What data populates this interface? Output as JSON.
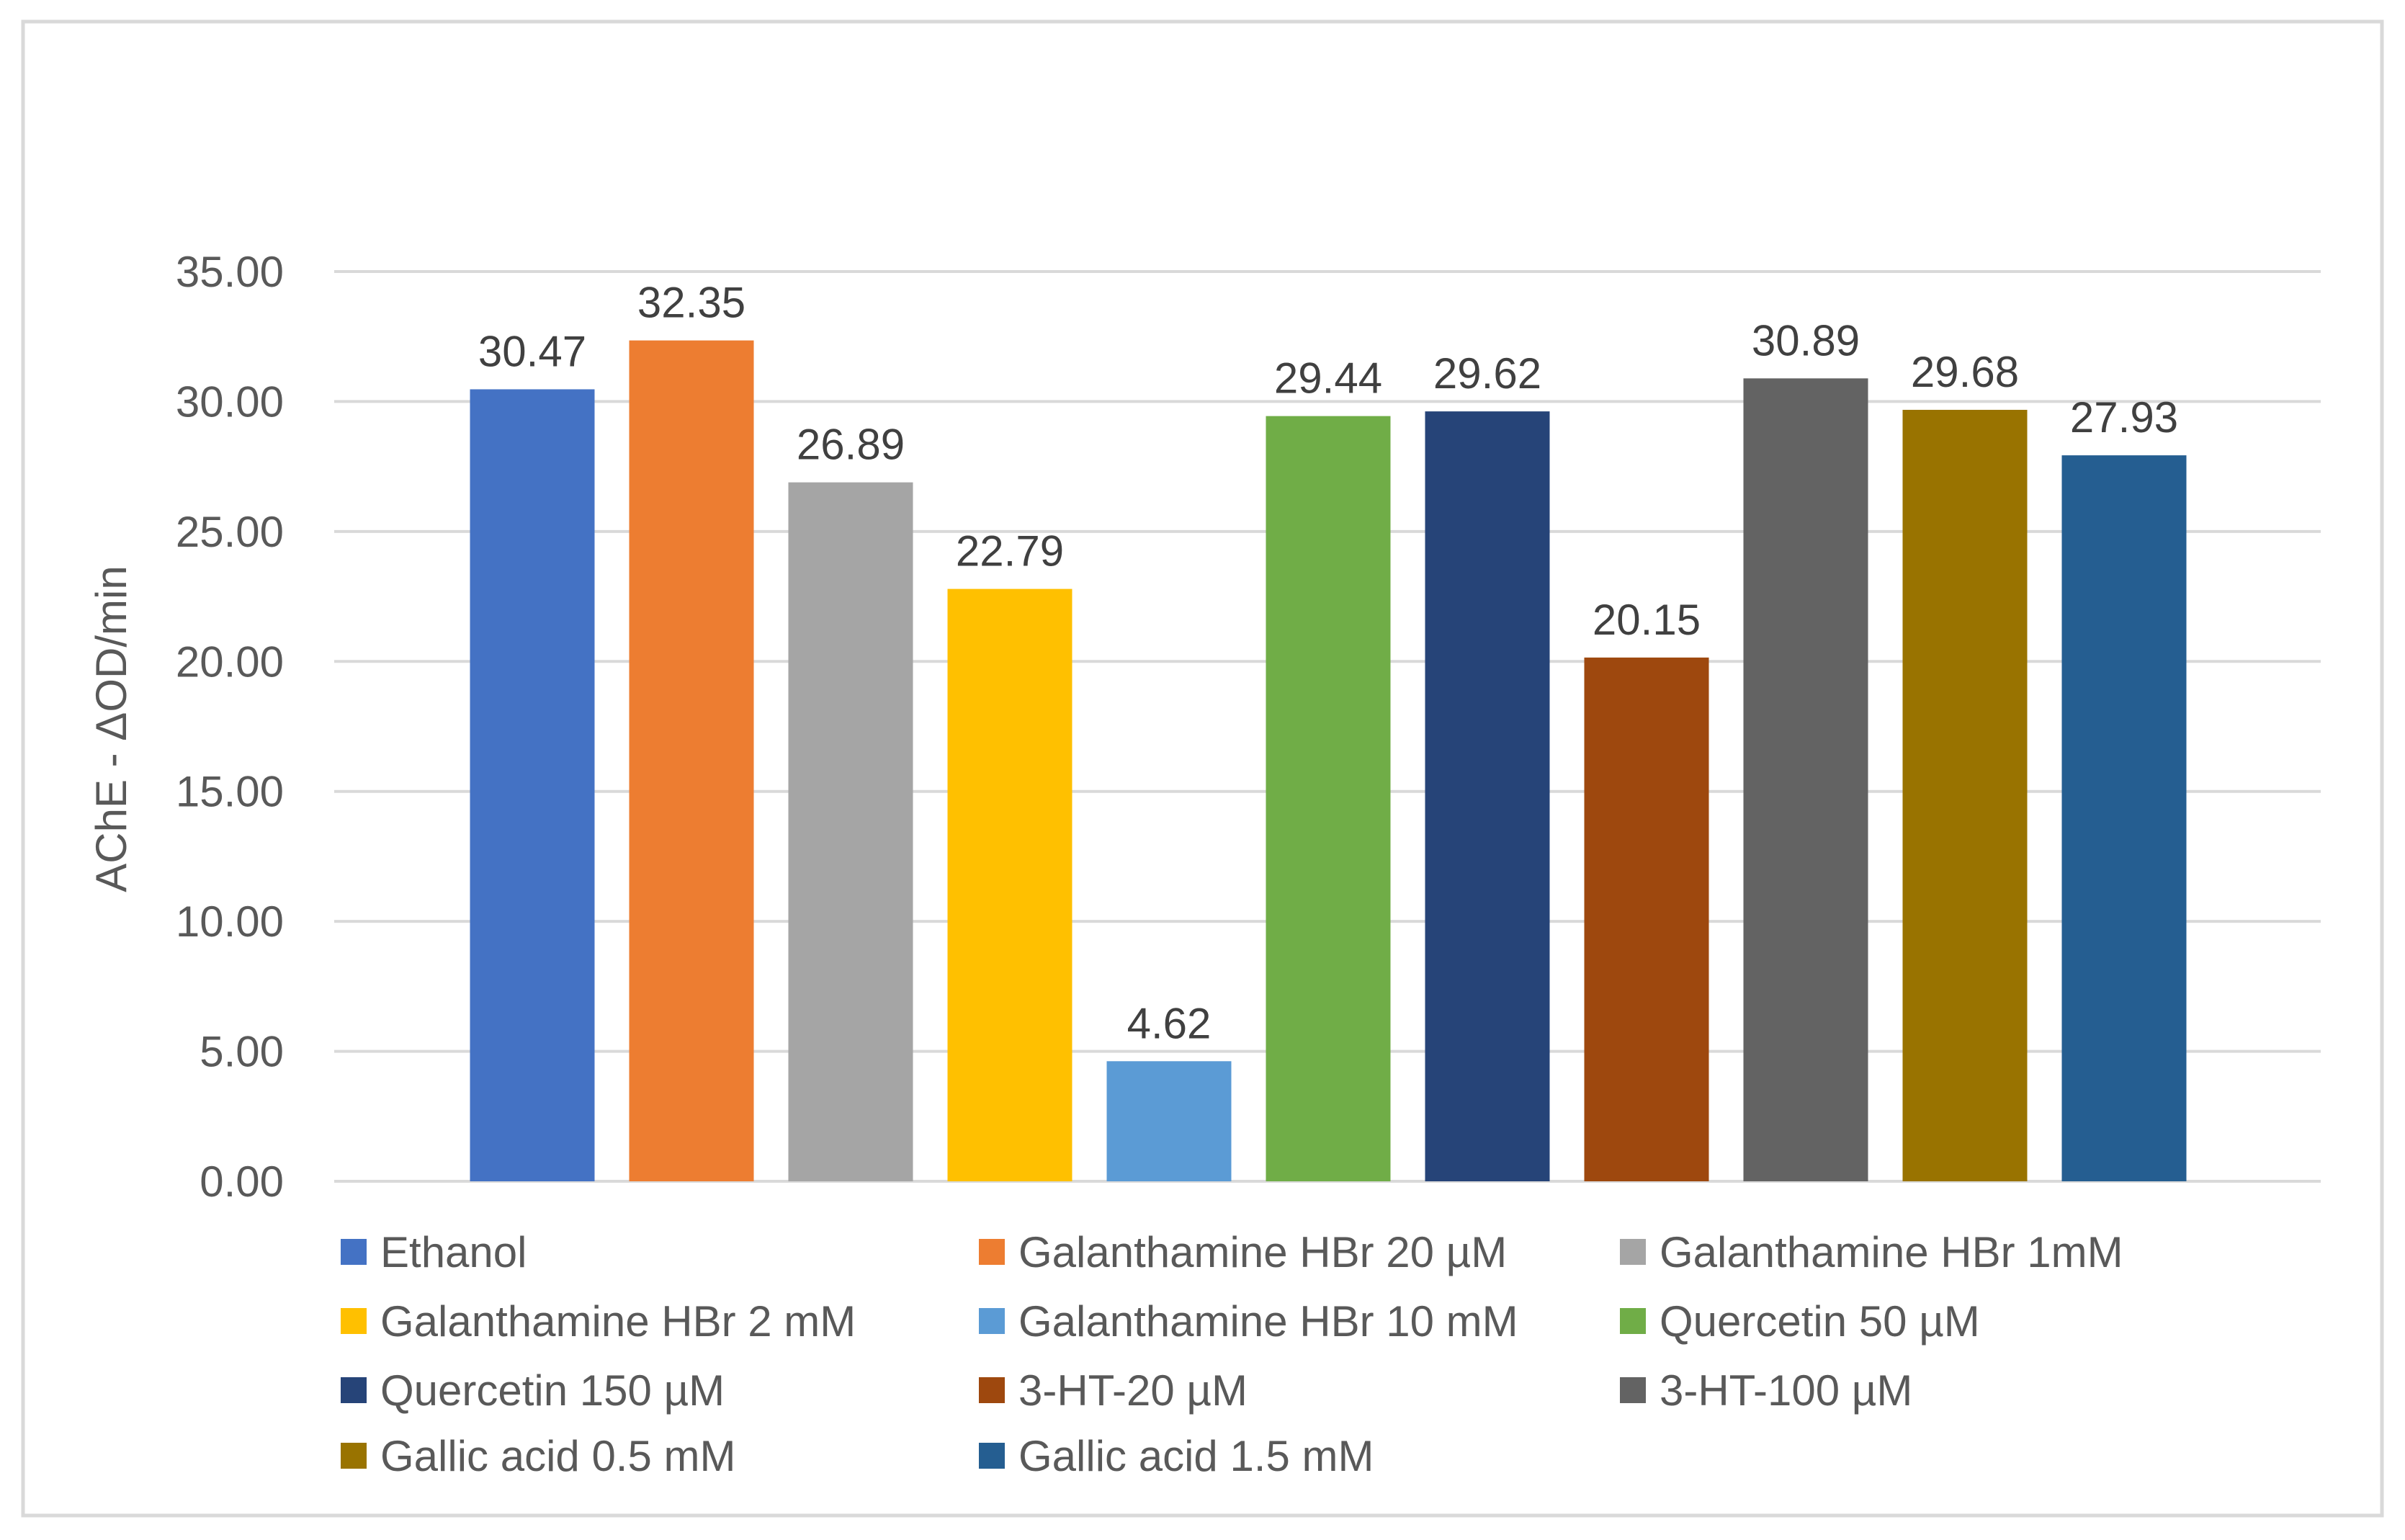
{
  "chart_data": {
    "type": "bar",
    "title": "",
    "xlabel": "",
    "ylabel": "AChE - ΔOD/min",
    "ylim": [
      0,
      35
    ],
    "yticks": [
      "0.00",
      "5.00",
      "10.00",
      "15.00",
      "20.00",
      "25.00",
      "30.00",
      "35.00"
    ],
    "grid": true,
    "legend_position": "bottom",
    "series": [
      {
        "name": "Ethanol",
        "value": 30.47,
        "label": "30.47",
        "color": "#4472C4"
      },
      {
        "name": "Galanthamine HBr 20 µM",
        "value": 32.35,
        "label": "32.35",
        "color": "#ED7D31"
      },
      {
        "name": "Galanthamine HBr 1mM",
        "value": 26.89,
        "label": "26.89",
        "color": "#A5A5A5"
      },
      {
        "name": "Galanthamine HBr 2 mM",
        "value": 22.79,
        "label": "22.79",
        "color": "#FFC000"
      },
      {
        "name": "Galanthamine HBr 10 mM",
        "value": 4.62,
        "label": "4.62",
        "color": "#5B9BD5"
      },
      {
        "name": "Quercetin 50 µM",
        "value": 29.44,
        "label": "29.44",
        "color": "#70AD47"
      },
      {
        "name": "Quercetin 150 µM",
        "value": 29.62,
        "label": "29.62",
        "color": "#264478"
      },
      {
        "name": "3-HT-20 µM",
        "value": 20.15,
        "label": "20.15",
        "color": "#9E480E"
      },
      {
        "name": "3-HT-100 µM",
        "value": 30.89,
        "label": "30.89",
        "color": "#636363"
      },
      {
        "name": "Gallic acid 0.5 mM",
        "value": 29.68,
        "label": "29.68",
        "color": "#997300"
      },
      {
        "name": "Gallic acid 1.5 mM",
        "value": 27.93,
        "label": "27.93",
        "color": "#255E91"
      }
    ]
  }
}
